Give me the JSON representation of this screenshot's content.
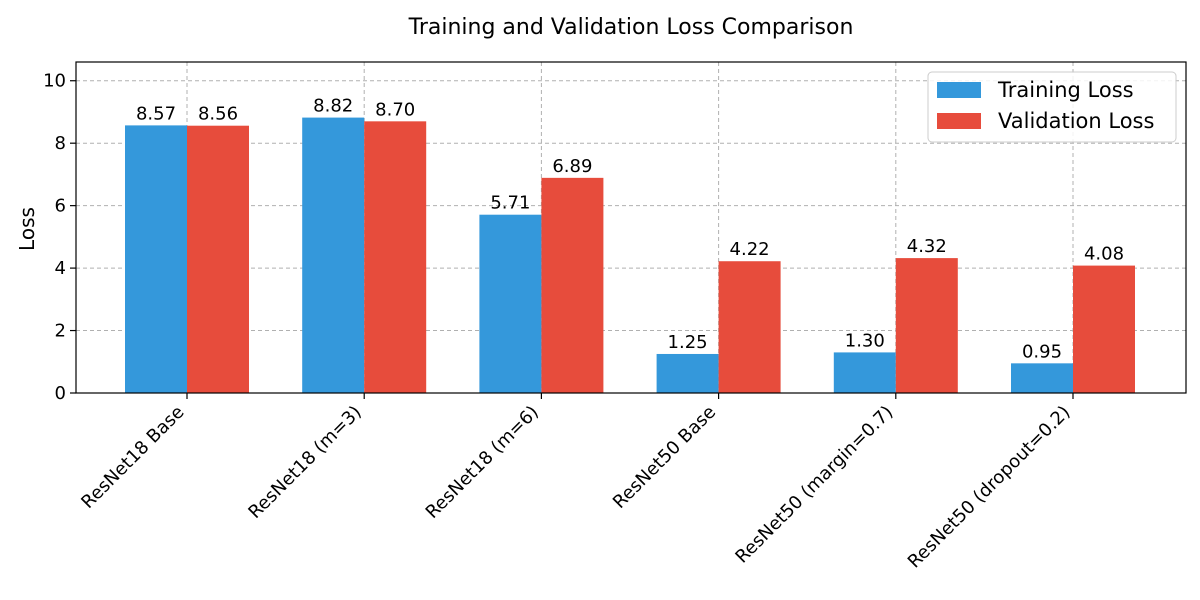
{
  "chart_data": {
    "type": "bar",
    "title": "Training and Validation Loss Comparison",
    "xlabel": "",
    "ylabel": "Loss",
    "ylim": [
      0,
      10.6
    ],
    "yticks": [
      "0",
      "2",
      "4",
      "6",
      "8",
      "10"
    ],
    "ytick_values": [
      0,
      2,
      4,
      6,
      8,
      10
    ],
    "categories": [
      "ResNet18 Base",
      "ResNet18 (m=3)",
      "ResNet18 (m=6)",
      "ResNet50 Base",
      "ResNet50 (margin=0.7)",
      "ResNet50 (dropout=0.2)"
    ],
    "series": [
      {
        "name": "Training Loss",
        "color": "#3498db",
        "values": [
          8.57,
          8.82,
          5.71,
          1.25,
          1.3,
          0.95
        ],
        "labels": [
          "8.57",
          "8.82",
          "5.71",
          "1.25",
          "1.30",
          "0.95"
        ]
      },
      {
        "name": "Validation Loss",
        "color": "#e74c3c",
        "values": [
          8.56,
          8.7,
          6.89,
          4.22,
          4.32,
          4.08
        ],
        "labels": [
          "8.56",
          "8.70",
          "6.89",
          "4.22",
          "4.32",
          "4.08"
        ]
      }
    ],
    "grid": true,
    "legend_position": "top-right"
  }
}
